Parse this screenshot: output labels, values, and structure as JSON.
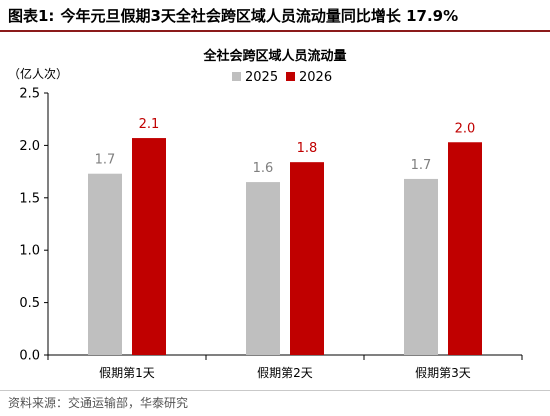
{
  "figure": {
    "label": "图表1:",
    "title": "今年元旦假期3天全社会跨区域人员流动量同比增长 17.9%"
  },
  "source": "资料来源：交通运输部，华泰研究",
  "chart_data": {
    "type": "bar",
    "title": "全社会跨区域人员流动量",
    "ylabel": "（亿人次）",
    "categories": [
      "假期第1天",
      "假期第2天",
      "假期第3天"
    ],
    "series": [
      {
        "name": "2025",
        "values": [
          1.7,
          1.6,
          1.7
        ],
        "color": "#bfbfbf",
        "label_color": "#7f7f7f"
      },
      {
        "name": "2026",
        "values": [
          2.1,
          1.8,
          2.0
        ],
        "color": "#c00000",
        "label_color": "#c00000"
      }
    ],
    "bar_heights": [
      [
        1.73,
        1.65,
        1.68
      ],
      [
        2.07,
        1.84,
        2.03
      ]
    ],
    "ylim": [
      0,
      2.5
    ],
    "yticks": [
      "0.0",
      "0.5",
      "1.0",
      "1.5",
      "2.0",
      "2.5"
    ],
    "legend_position": "top-center",
    "grid": false
  }
}
